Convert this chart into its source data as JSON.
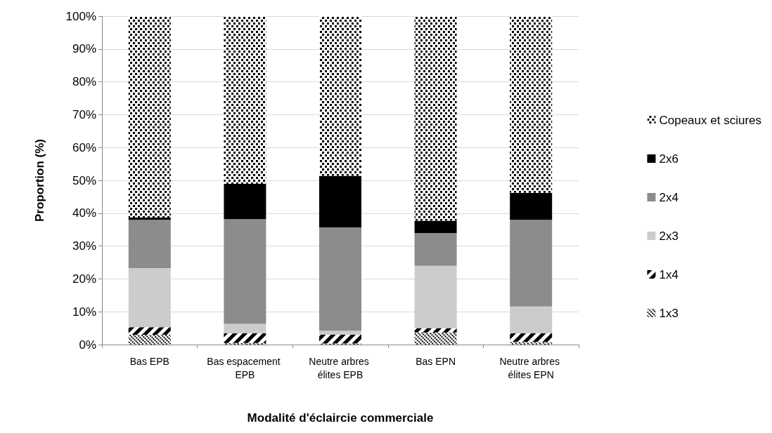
{
  "chart_data": {
    "type": "bar",
    "stacked": true,
    "xlabel": "Modalité d'éclaircie commerciale",
    "ylabel": "Proportion (%)",
    "categories": [
      "Bas EPB",
      "Bas espacement EPB",
      "Neutre arbres élites EPB",
      "Bas EPN",
      "Neutre arbres élites EPN"
    ],
    "series": [
      {
        "name": "1x3",
        "color": "#000000",
        "values": [
          3.0,
          0.5,
          0.3,
          3.7,
          0.8
        ]
      },
      {
        "name": "1x4",
        "color": "#000000",
        "values": [
          2.3,
          2.9,
          2.7,
          1.3,
          2.6
        ]
      },
      {
        "name": "2x3",
        "color": "#cccccc",
        "values": [
          18.0,
          2.9,
          1.2,
          19.0,
          8.2
        ]
      },
      {
        "name": "2x4",
        "color": "#8c8c8c",
        "values": [
          14.7,
          31.9,
          31.5,
          10.0,
          26.4
        ]
      },
      {
        "name": "2x6",
        "color": "#000000",
        "values": [
          0.7,
          10.8,
          15.7,
          3.7,
          8.2
        ]
      },
      {
        "name": "Copeaux et sciures",
        "color": "#000000",
        "values": [
          61.3,
          51.0,
          48.6,
          62.3,
          53.8
        ]
      }
    ],
    "ylim": [
      0,
      100
    ],
    "yticks": [
      {
        "value": 0,
        "label": "0%"
      },
      {
        "value": 10,
        "label": "10%"
      },
      {
        "value": 20,
        "label": "20%"
      },
      {
        "value": 30,
        "label": "30%"
      },
      {
        "value": 40,
        "label": "40%"
      },
      {
        "value": 50,
        "label": "50%"
      },
      {
        "value": 60,
        "label": "60%"
      },
      {
        "value": 70,
        "label": "70%"
      },
      {
        "value": 80,
        "label": "80%"
      },
      {
        "value": 90,
        "label": "90%"
      },
      {
        "value": 100,
        "label": "100%"
      }
    ],
    "grid": "y",
    "legend": "right"
  }
}
